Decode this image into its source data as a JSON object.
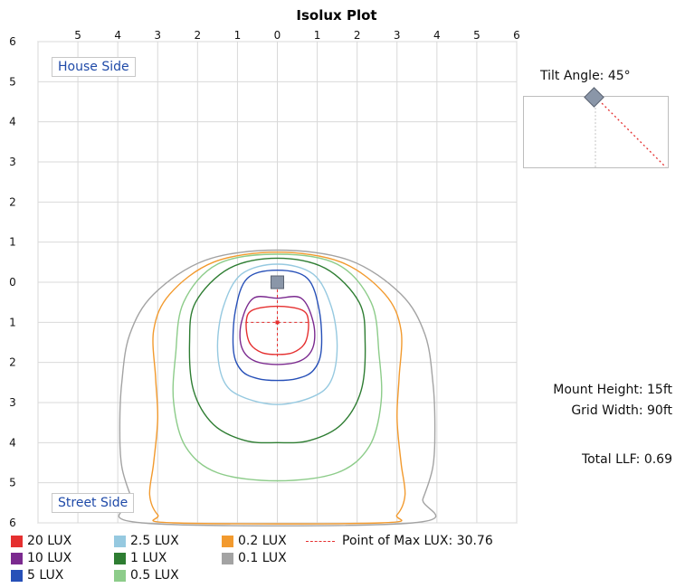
{
  "chart_data": {
    "type": "contour",
    "title": "Isolux Plot",
    "x_ticks": [
      "5",
      "4",
      "3",
      "2",
      "1",
      "0",
      "1",
      "2",
      "3",
      "4",
      "5",
      "6"
    ],
    "y_ticks": [
      "6",
      "5",
      "4",
      "3",
      "2",
      "1",
      "0",
      "1",
      "2",
      "3",
      "4",
      "5",
      "6"
    ],
    "grid": true,
    "xlim": [
      -6,
      6
    ],
    "ylim": [
      -6,
      6
    ],
    "max_point": {
      "x": 0,
      "y": -1
    },
    "luminaire": {
      "x": 0,
      "y": 0
    },
    "contours": [
      {
        "level": "20 LUX",
        "color": "#e53030",
        "points": [
          [
            0,
            -0.6
          ],
          [
            0.63,
            -0.7
          ],
          [
            0.78,
            -1.0
          ],
          [
            0.7,
            -1.5
          ],
          [
            0.4,
            -1.75
          ],
          [
            0,
            -1.8
          ],
          [
            -0.4,
            -1.75
          ],
          [
            -0.7,
            -1.5
          ],
          [
            -0.78,
            -1.0
          ],
          [
            -0.63,
            -0.7
          ]
        ]
      },
      {
        "level": "10 LUX",
        "color": "#7b2a8f",
        "points": [
          [
            0,
            -0.4
          ],
          [
            0.6,
            -0.4
          ],
          [
            0.9,
            -1.0
          ],
          [
            0.9,
            -1.6
          ],
          [
            0.6,
            -1.95
          ],
          [
            0,
            -2.05
          ],
          [
            -0.6,
            -1.95
          ],
          [
            -0.9,
            -1.6
          ],
          [
            -0.9,
            -1.0
          ],
          [
            -0.6,
            -0.4
          ]
        ]
      },
      {
        "level": "5 LUX",
        "color": "#2750b8",
        "points": [
          [
            0,
            0.3
          ],
          [
            0.75,
            0.1
          ],
          [
            1.05,
            -0.7
          ],
          [
            1.1,
            -1.7
          ],
          [
            0.9,
            -2.2
          ],
          [
            0.5,
            -2.4
          ],
          [
            0,
            -2.45
          ],
          [
            -0.5,
            -2.4
          ],
          [
            -0.9,
            -2.2
          ],
          [
            -1.1,
            -1.7
          ],
          [
            -1.05,
            -0.7
          ],
          [
            -0.75,
            0.1
          ]
        ]
      },
      {
        "level": "2.5 LUX",
        "color": "#96c9e0",
        "points": [
          [
            0,
            0.45
          ],
          [
            0.9,
            0.2
          ],
          [
            1.35,
            -0.6
          ],
          [
            1.5,
            -1.6
          ],
          [
            1.35,
            -2.45
          ],
          [
            0.9,
            -2.85
          ],
          [
            0,
            -3.05
          ],
          [
            -0.9,
            -2.85
          ],
          [
            -1.35,
            -2.45
          ],
          [
            -1.5,
            -1.6
          ],
          [
            -1.35,
            -0.6
          ],
          [
            -0.9,
            0.2
          ]
        ]
      },
      {
        "level": "1 LUX",
        "color": "#2e7d32",
        "points": [
          [
            0,
            0.6
          ],
          [
            1.2,
            0.35
          ],
          [
            2.05,
            -0.5
          ],
          [
            2.2,
            -1.5
          ],
          [
            2.1,
            -2.7
          ],
          [
            1.6,
            -3.55
          ],
          [
            0.8,
            -3.95
          ],
          [
            0,
            -4.0
          ],
          [
            -0.8,
            -3.95
          ],
          [
            -1.6,
            -3.55
          ],
          [
            -2.1,
            -2.7
          ],
          [
            -2.2,
            -1.5
          ],
          [
            -2.05,
            -0.5
          ],
          [
            -1.2,
            0.35
          ]
        ]
      },
      {
        "level": "0.5 LUX",
        "color": "#8dcc8a",
        "points": [
          [
            0,
            0.7
          ],
          [
            1.5,
            0.45
          ],
          [
            2.35,
            -0.5
          ],
          [
            2.55,
            -1.8
          ],
          [
            2.6,
            -3.0
          ],
          [
            2.3,
            -4.1
          ],
          [
            1.5,
            -4.75
          ],
          [
            0,
            -4.95
          ],
          [
            -1.5,
            -4.75
          ],
          [
            -2.3,
            -4.1
          ],
          [
            -2.6,
            -3.0
          ],
          [
            -2.55,
            -1.8
          ],
          [
            -2.35,
            -0.5
          ],
          [
            -1.5,
            0.45
          ]
        ]
      },
      {
        "level": "0.2 LUX",
        "color": "#f29a2e",
        "points": [
          [
            0,
            0.75
          ],
          [
            1.6,
            0.5
          ],
          [
            2.7,
            -0.3
          ],
          [
            3.1,
            -1.2
          ],
          [
            3.05,
            -2.4
          ],
          [
            3.0,
            -3.4
          ],
          [
            3.1,
            -4.5
          ],
          [
            3.2,
            -5.3
          ],
          [
            3.0,
            -5.8
          ],
          [
            2.6,
            -6.0
          ],
          [
            -2.6,
            -6.0
          ],
          [
            -3.0,
            -5.8
          ],
          [
            -3.2,
            -5.3
          ],
          [
            -3.1,
            -4.5
          ],
          [
            -3.0,
            -3.4
          ],
          [
            -3.05,
            -2.4
          ],
          [
            -3.1,
            -1.2
          ],
          [
            -2.7,
            -0.3
          ],
          [
            -1.6,
            0.5
          ]
        ]
      },
      {
        "level": "0.1 LUX",
        "color": "#a3a3a3",
        "points": [
          [
            0,
            0.8
          ],
          [
            1.8,
            0.55
          ],
          [
            3.1,
            -0.3
          ],
          [
            3.7,
            -1.3
          ],
          [
            3.9,
            -2.5
          ],
          [
            3.95,
            -3.6
          ],
          [
            3.9,
            -4.6
          ],
          [
            3.65,
            -5.4
          ],
          [
            3.4,
            -6.0
          ],
          [
            -3.4,
            -6.0
          ],
          [
            -3.65,
            -5.4
          ],
          [
            -3.9,
            -4.6
          ],
          [
            -3.95,
            -3.6
          ],
          [
            -3.9,
            -2.5
          ],
          [
            -3.7,
            -1.3
          ],
          [
            -3.1,
            -0.3
          ],
          [
            -1.8,
            0.55
          ]
        ]
      }
    ],
    "tilt_angle_deg": 45
  },
  "labels": {
    "house_side": "House Side",
    "street_side": "Street Side",
    "tilt_angle": "Tilt Angle: 45°",
    "mount_height": "Mount Height: 15ft",
    "grid_width": "Grid Width: 90ft",
    "total_llf": "Total LLF: 0.69"
  },
  "legend": [
    {
      "label": "20 LUX",
      "color": "#e53030"
    },
    {
      "label": "10 LUX",
      "color": "#7b2a8f"
    },
    {
      "label": "5 LUX",
      "color": "#2750b8"
    },
    {
      "label": "2.5 LUX",
      "color": "#96c9e0"
    },
    {
      "label": "1 LUX",
      "color": "#2e7d32"
    },
    {
      "label": "0.5 LUX",
      "color": "#8dcc8a"
    },
    {
      "label": "0.2 LUX",
      "color": "#f29a2e"
    },
    {
      "label": "0.1 LUX",
      "color": "#a3a3a3"
    }
  ],
  "max_lux_label": "Point of Max LUX: 30.76"
}
